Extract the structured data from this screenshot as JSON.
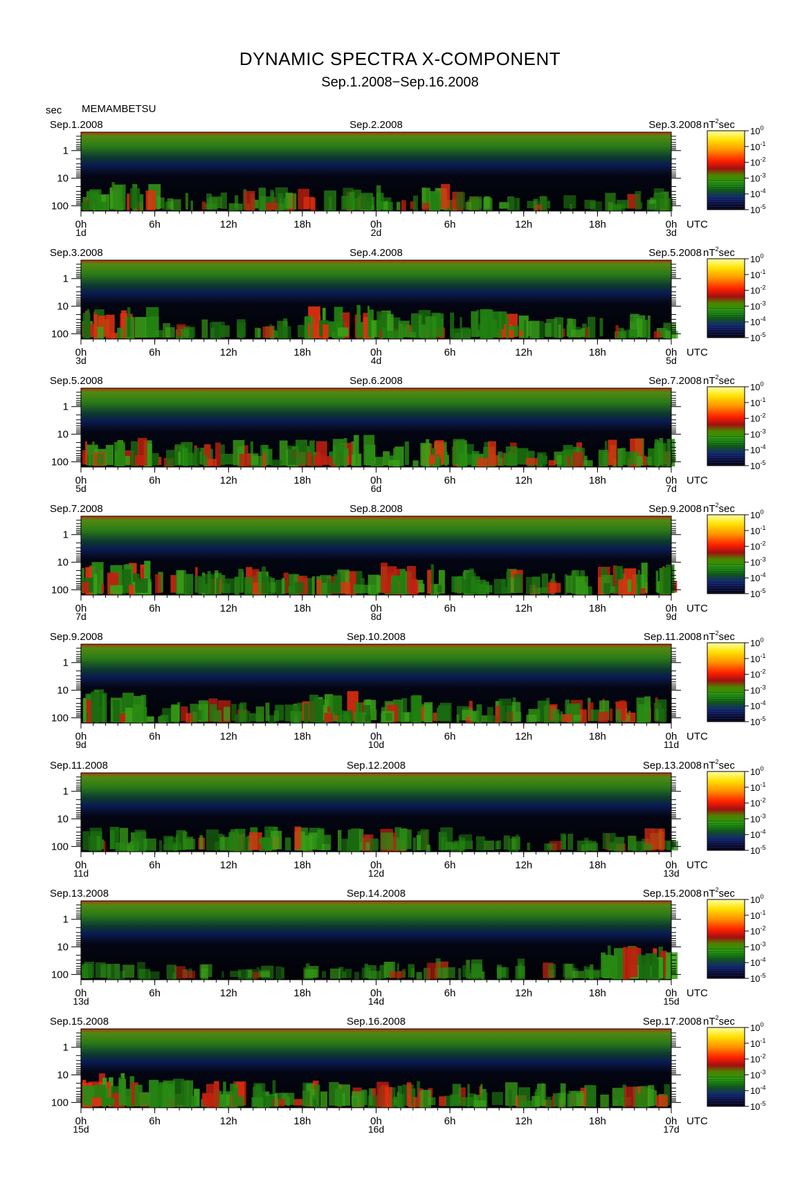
{
  "header": {
    "title": "DYNAMIC SPECTRA X-COMPONENT",
    "subtitle": "Sep.1.2008−Sep.16.2008",
    "y_unit": "sec",
    "station": "MEMAMBETSU",
    "utc_label": "UTC",
    "colorbar_unit": "nT",
    "colorbar_unit_exp": "2",
    "colorbar_unit_suffix": "sec"
  },
  "chart_data": {
    "type": "heatmap",
    "x_ticks_hour": [
      "0h",
      "6h",
      "12h",
      "18h",
      "0h",
      "6h",
      "12h",
      "18h",
      "0h"
    ],
    "y_ticks": [
      "1",
      "10",
      "100"
    ],
    "y_scale": "log",
    "colorbar": {
      "ticks": [
        {
          "base": "10",
          "exp": "0"
        },
        {
          "base": "10",
          "exp": "-1"
        },
        {
          "base": "10",
          "exp": "-2"
        },
        {
          "base": "10",
          "exp": "-3"
        },
        {
          "base": "10",
          "exp": "-4"
        },
        {
          "base": "10",
          "exp": "-5"
        }
      ],
      "colors": [
        "#ffff80",
        "#ffd000",
        "#ff8000",
        "#ff2000",
        "#c01010",
        "#508000",
        "#20a000",
        "#106010",
        "#082858",
        "#102080",
        "#000010"
      ]
    },
    "panels": [
      {
        "date_left": "Sep.1.2008",
        "date_mid": "Sep.2.2008",
        "date_right": "Sep.3.2008",
        "day_left": "1d",
        "day_mid": "2d",
        "day_right": "3d",
        "activity": [
          0.7,
          0.2,
          0.6,
          0.4,
          0.6,
          0.3,
          0.1,
          0.4
        ]
      },
      {
        "date_left": "Sep.3.2008",
        "date_mid": "Sep.4.2008",
        "date_right": "Sep.5.2008",
        "day_left": "3d",
        "day_mid": "4d",
        "day_right": "5d",
        "activity": [
          0.8,
          0.3,
          0.3,
          0.95,
          0.7,
          0.8,
          0.4,
          0.5
        ]
      },
      {
        "date_left": "Sep.5.2008",
        "date_mid": "Sep.6.2008",
        "date_right": "Sep.7.2008",
        "day_left": "5d",
        "day_mid": "6d",
        "day_right": "7d",
        "activity": [
          0.7,
          0.6,
          0.6,
          0.8,
          0.7,
          0.6,
          0.5,
          0.7
        ]
      },
      {
        "date_left": "Sep.7.2008",
        "date_mid": "Sep.8.2008",
        "date_right": "Sep.9.2008",
        "day_left": "7d",
        "day_mid": "8d",
        "day_right": "9d",
        "activity": [
          0.9,
          0.6,
          0.7,
          0.6,
          0.8,
          0.6,
          0.5,
          0.8
        ]
      },
      {
        "date_left": "Sep.9.2008",
        "date_mid": "Sep.10.2008",
        "date_right": "Sep.11.2008",
        "day_left": "9d",
        "day_mid": "10d",
        "day_right": "11d",
        "activity": [
          0.9,
          0.5,
          0.4,
          0.8,
          0.7,
          0.5,
          0.5,
          0.6
        ]
      },
      {
        "date_left": "Sep.11.2008",
        "date_mid": "Sep.12.2008",
        "date_right": "Sep.13.2008",
        "day_left": "11d",
        "day_mid": "12d",
        "day_right": "13d",
        "activity": [
          0.5,
          0.4,
          0.6,
          0.5,
          0.5,
          0.2,
          0.2,
          0.4
        ]
      },
      {
        "date_left": "Sep.13.2008",
        "date_mid": "Sep.14.2008",
        "date_right": "Sep.15.2008",
        "day_left": "13d",
        "day_mid": "14d",
        "day_right": "15d",
        "activity": [
          0.2,
          0.1,
          0.1,
          0.2,
          0.3,
          0.3,
          0.2,
          0.9
        ]
      },
      {
        "date_left": "Sep.15.2008",
        "date_mid": "Sep.16.2008",
        "date_right": "Sep.17.2008",
        "day_left": "15d",
        "day_mid": "16d",
        "day_right": "17d",
        "activity": [
          0.95,
          0.7,
          0.6,
          0.6,
          0.6,
          0.5,
          0.5,
          0.5
        ]
      }
    ]
  }
}
